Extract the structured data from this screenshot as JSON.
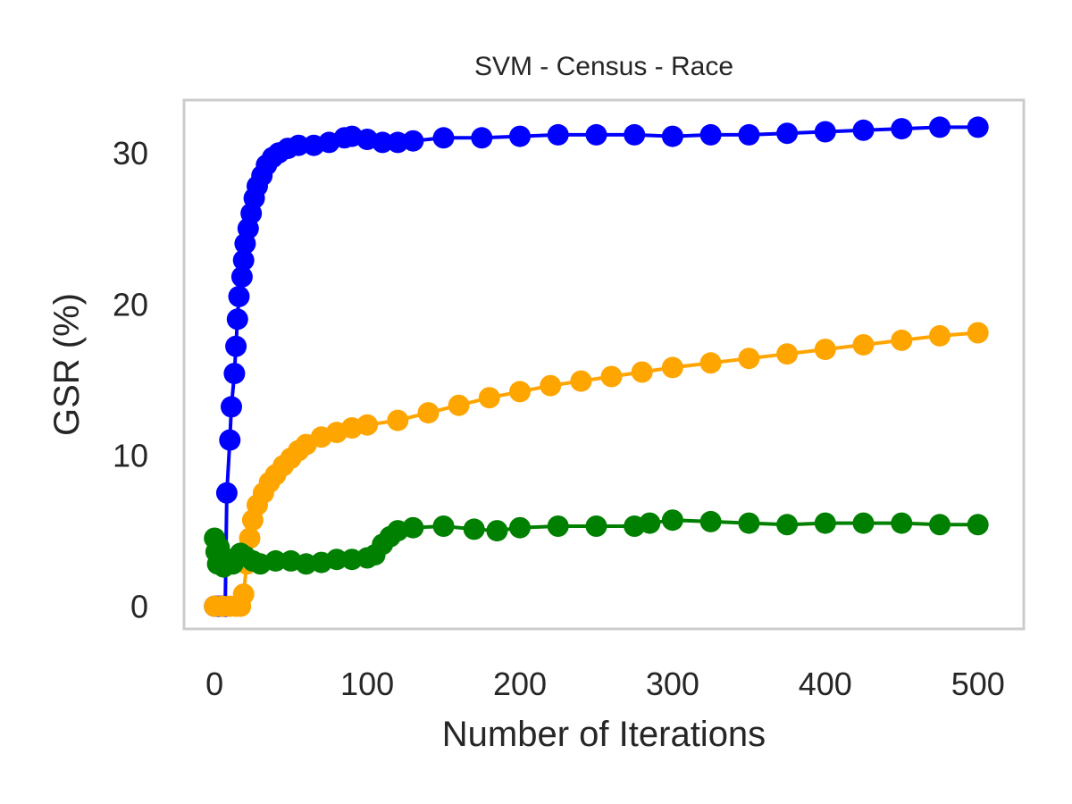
{
  "chart_data": {
    "type": "line",
    "title": "SVM - Census - Race",
    "xlabel": "Number of Iterations",
    "ylabel": "GSR (%)",
    "xlim": [
      -20,
      530
    ],
    "ylim": [
      -1.5,
      33.5
    ],
    "xticks": [
      0,
      100,
      200,
      300,
      400,
      500
    ],
    "yticks": [
      0,
      10,
      20,
      30
    ],
    "grid": false,
    "legend": "none",
    "series": [
      {
        "color": "#0000ff",
        "points": [
          [
            0,
            0
          ],
          [
            2,
            0
          ],
          [
            4,
            0
          ],
          [
            5,
            0
          ],
          [
            6,
            0
          ],
          [
            7,
            0
          ],
          [
            8,
            7.5
          ],
          [
            10,
            11.0
          ],
          [
            11,
            13.2
          ],
          [
            13,
            15.4
          ],
          [
            14,
            17.2
          ],
          [
            15,
            19.0
          ],
          [
            16,
            20.5
          ],
          [
            18,
            21.8
          ],
          [
            19,
            22.9
          ],
          [
            20,
            24.0
          ],
          [
            22,
            25.0
          ],
          [
            24,
            26.0
          ],
          [
            26,
            27.0
          ],
          [
            28,
            27.8
          ],
          [
            31,
            28.5
          ],
          [
            34,
            29.2
          ],
          [
            38,
            29.7
          ],
          [
            42,
            30.0
          ],
          [
            48,
            30.3
          ],
          [
            55,
            30.5
          ],
          [
            65,
            30.5
          ],
          [
            75,
            30.7
          ],
          [
            85,
            31.0
          ],
          [
            90,
            31.1
          ],
          [
            100,
            30.9
          ],
          [
            110,
            30.7
          ],
          [
            120,
            30.7
          ],
          [
            130,
            30.8
          ],
          [
            150,
            31.0
          ],
          [
            175,
            31.0
          ],
          [
            200,
            31.1
          ],
          [
            225,
            31.2
          ],
          [
            250,
            31.2
          ],
          [
            275,
            31.2
          ],
          [
            300,
            31.1
          ],
          [
            325,
            31.2
          ],
          [
            350,
            31.2
          ],
          [
            375,
            31.3
          ],
          [
            400,
            31.4
          ],
          [
            425,
            31.5
          ],
          [
            450,
            31.6
          ],
          [
            475,
            31.7
          ],
          [
            500,
            31.7
          ]
        ]
      },
      {
        "color": "#ffa500",
        "points": [
          [
            0,
            0
          ],
          [
            5,
            0
          ],
          [
            10,
            0
          ],
          [
            14,
            0
          ],
          [
            17,
            0
          ],
          [
            19,
            0.8
          ],
          [
            21,
            2.8
          ],
          [
            23,
            4.5
          ],
          [
            25,
            5.7
          ],
          [
            28,
            6.7
          ],
          [
            32,
            7.5
          ],
          [
            36,
            8.2
          ],
          [
            40,
            8.7
          ],
          [
            45,
            9.3
          ],
          [
            50,
            9.8
          ],
          [
            55,
            10.3
          ],
          [
            60,
            10.7
          ],
          [
            70,
            11.2
          ],
          [
            80,
            11.5
          ],
          [
            90,
            11.8
          ],
          [
            100,
            12.0
          ],
          [
            120,
            12.3
          ],
          [
            140,
            12.8
          ],
          [
            160,
            13.3
          ],
          [
            180,
            13.8
          ],
          [
            200,
            14.2
          ],
          [
            220,
            14.6
          ],
          [
            240,
            14.9
          ],
          [
            260,
            15.2
          ],
          [
            280,
            15.5
          ],
          [
            300,
            15.8
          ],
          [
            325,
            16.1
          ],
          [
            350,
            16.4
          ],
          [
            375,
            16.7
          ],
          [
            400,
            17.0
          ],
          [
            425,
            17.3
          ],
          [
            450,
            17.6
          ],
          [
            475,
            17.9
          ],
          [
            500,
            18.1
          ]
        ]
      },
      {
        "color": "#008000",
        "points": [
          [
            0,
            4.5
          ],
          [
            1,
            3.6
          ],
          [
            2,
            2.8
          ],
          [
            3,
            3.9
          ],
          [
            4,
            3.1
          ],
          [
            6,
            2.6
          ],
          [
            8,
            2.8
          ],
          [
            10,
            3.0
          ],
          [
            12,
            2.8
          ],
          [
            14,
            3.2
          ],
          [
            17,
            3.5
          ],
          [
            20,
            3.3
          ],
          [
            25,
            3.0
          ],
          [
            30,
            2.8
          ],
          [
            40,
            3.0
          ],
          [
            50,
            3.0
          ],
          [
            60,
            2.8
          ],
          [
            70,
            2.9
          ],
          [
            80,
            3.1
          ],
          [
            90,
            3.1
          ],
          [
            100,
            3.2
          ],
          [
            105,
            3.4
          ],
          [
            110,
            4.1
          ],
          [
            115,
            4.6
          ],
          [
            120,
            5.0
          ],
          [
            130,
            5.2
          ],
          [
            150,
            5.3
          ],
          [
            170,
            5.1
          ],
          [
            185,
            5.0
          ],
          [
            200,
            5.2
          ],
          [
            225,
            5.3
          ],
          [
            250,
            5.3
          ],
          [
            275,
            5.3
          ],
          [
            285,
            5.5
          ],
          [
            300,
            5.7
          ],
          [
            325,
            5.6
          ],
          [
            350,
            5.5
          ],
          [
            375,
            5.4
          ],
          [
            400,
            5.5
          ],
          [
            425,
            5.5
          ],
          [
            450,
            5.5
          ],
          [
            475,
            5.4
          ],
          [
            500,
            5.4
          ]
        ]
      }
    ]
  }
}
